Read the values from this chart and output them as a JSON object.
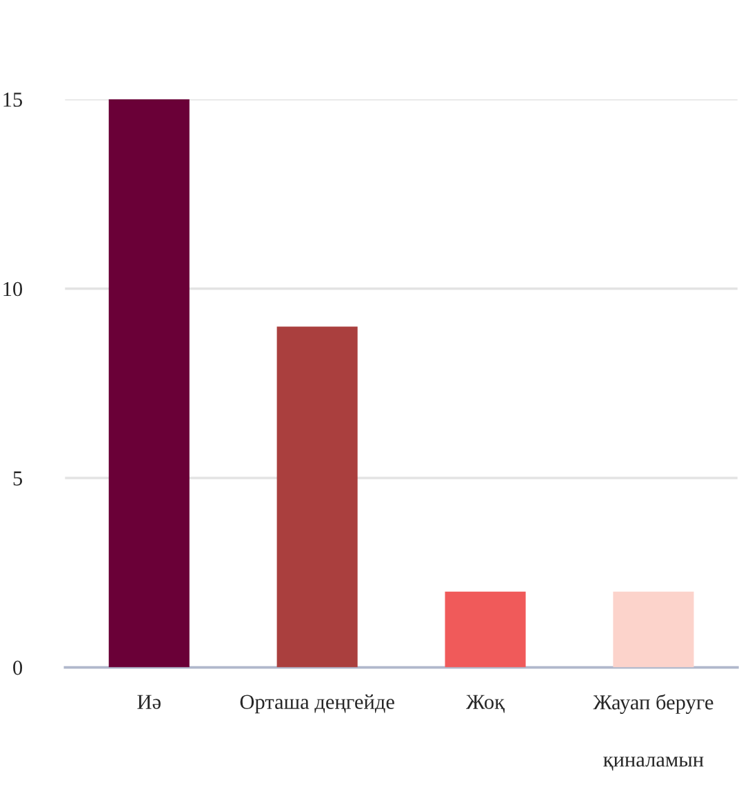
{
  "chart_data": {
    "type": "bar",
    "categories": [
      "Иә",
      "Орташа деңгейде",
      "Жоқ",
      "Жауап беруге\nқиналамын"
    ],
    "values": [
      15,
      9,
      2,
      2
    ],
    "colors": [
      "#6a0037",
      "#aa3f3e",
      "#f05a5a",
      "#fcd3cb"
    ],
    "ylim": [
      0,
      15
    ],
    "yticks": [
      0,
      5,
      10,
      15
    ],
    "grid": "y"
  }
}
